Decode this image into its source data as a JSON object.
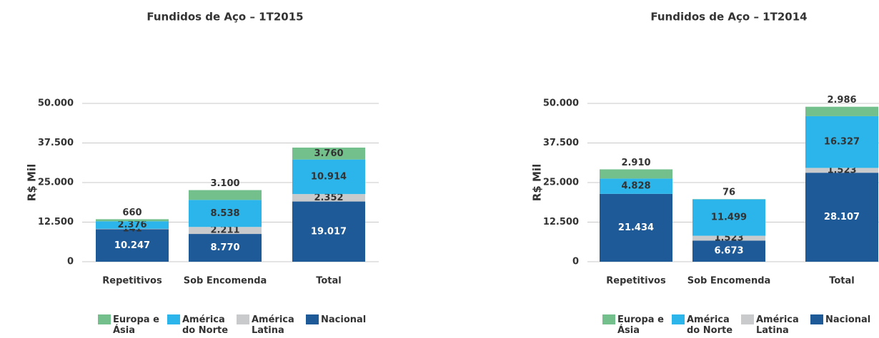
{
  "chart_data": [
    {
      "type": "bar",
      "stacked": true,
      "title": "Fundidos de Aço – 1T2015",
      "ylabel": "R$ Mil",
      "categories": [
        "Repetitivos",
        "Sob Encomenda",
        "Total"
      ],
      "series": [
        {
          "name": "Nacional",
          "color": "#1d5a97",
          "values": [
            10247,
            8770,
            19017
          ],
          "value_labels": [
            "10.247",
            "8.770",
            "19.017"
          ]
        },
        {
          "name": "América Latina",
          "color": "#c9cacc",
          "values": [
            141,
            2211,
            2352
          ],
          "value_labels": [
            "141",
            "2.211",
            "2.352"
          ]
        },
        {
          "name": "América do Norte",
          "color": "#2cb5ea",
          "values": [
            2376,
            8538,
            10914
          ],
          "value_labels": [
            "2.376",
            "8.538",
            "10.914"
          ]
        },
        {
          "name": "Europa e Ásia",
          "color": "#74c08d",
          "values": [
            660,
            3100,
            3760
          ],
          "value_labels": [
            "660",
            "3.100",
            "3.760"
          ]
        }
      ],
      "ylim": [
        0,
        50000
      ],
      "yticks": [
        0,
        {
          "value": 12500,
          "label": "12.500"
        },
        {
          "value": 25000,
          "label": "25.000"
        },
        {
          "value": 37500,
          "label": "37.500"
        },
        {
          "value": 50000,
          "label": "50.000"
        }
      ],
      "grid": true
    },
    {
      "type": "bar",
      "stacked": true,
      "title": "Fundidos de Aço – 1T2014",
      "ylabel": "R$ Mil",
      "categories": [
        "Repetitivos",
        "Sob Encomenda",
        "Total"
      ],
      "series": [
        {
          "name": "Nacional",
          "color": "#1d5a97",
          "values": [
            21434,
            6673,
            28107
          ],
          "value_labels": [
            "21.434",
            "6.673",
            "28.107"
          ]
        },
        {
          "name": "América Latina",
          "color": "#c9cacc",
          "values": [
            null,
            1523,
            1523
          ],
          "value_labels": [
            null,
            "1.523",
            "1.523"
          ]
        },
        {
          "name": "América do Norte",
          "color": "#2cb5ea",
          "values": [
            4828,
            11499,
            16327
          ],
          "value_labels": [
            "4.828",
            "11.499",
            "16.327"
          ]
        },
        {
          "name": "Europa e Ásia",
          "color": "#74c08d",
          "values": [
            2910,
            76,
            2986
          ],
          "value_labels": [
            "2.910",
            "76",
            "2.986"
          ]
        }
      ],
      "ylim": [
        0,
        50000
      ],
      "yticks": [
        0,
        {
          "value": 12500,
          "label": "12.500"
        },
        {
          "value": 25000,
          "label": "25.000"
        },
        {
          "value": 37500,
          "label": "37.500"
        },
        {
          "value": 50000,
          "label": "50.000"
        }
      ],
      "grid": true
    }
  ]
}
